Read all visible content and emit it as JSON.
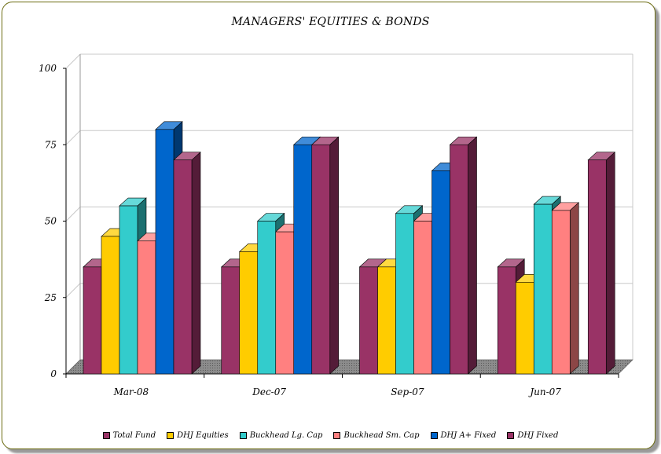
{
  "chart_data": {
    "type": "bar",
    "title": "MANAGERS' EQUITIES & BONDS",
    "categories": [
      "Mar-08",
      "Dec-07",
      "Sep-07",
      "Jun-07"
    ],
    "ylim": [
      0,
      100
    ],
    "yticks": [
      0,
      25,
      50,
      75,
      100
    ],
    "grid": true,
    "legend_position": "bottom",
    "series": [
      {
        "name": "Total Fund",
        "color": "#993366",
        "values": [
          35,
          35,
          35,
          35
        ]
      },
      {
        "name": "DHJ Equities",
        "color": "#ffcc00",
        "values": [
          45,
          40,
          35,
          30
        ]
      },
      {
        "name": "Buckhead Lg. Cap",
        "color": "#33cccc",
        "values": [
          55,
          50,
          52.5,
          55.5
        ]
      },
      {
        "name": "Buckhead Sm. Cap",
        "color": "#ff8080",
        "values": [
          43.5,
          46.5,
          50,
          53.5
        ]
      },
      {
        "name": "DHJ A+ Fixed",
        "color": "#0066cc",
        "values": [
          80,
          75,
          66.5,
          null
        ]
      },
      {
        "name": "DHJ Fixed",
        "color": "#993366",
        "values": [
          70,
          75,
          75,
          70
        ]
      }
    ]
  }
}
